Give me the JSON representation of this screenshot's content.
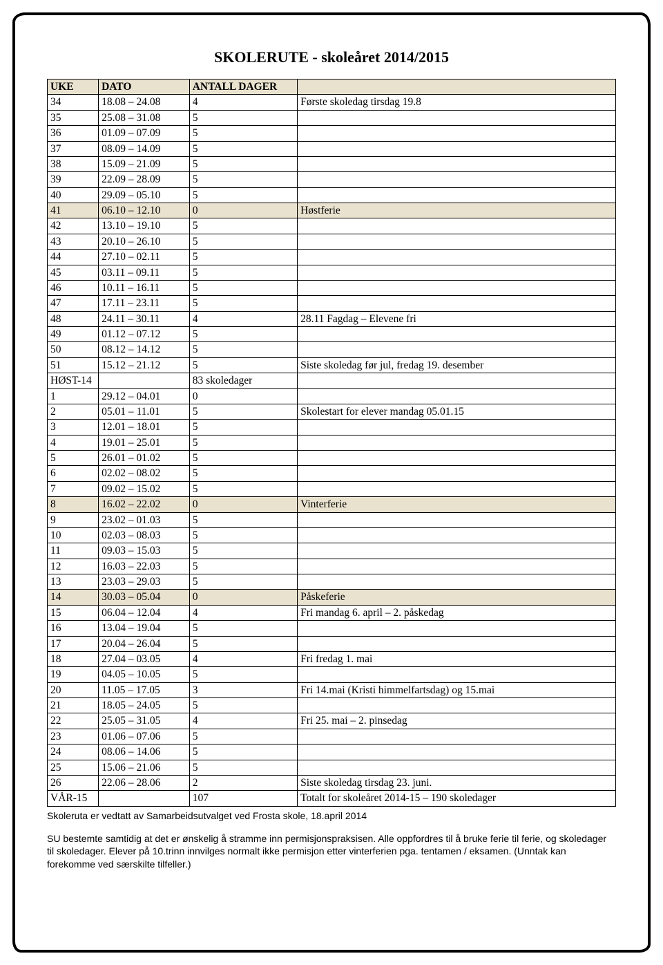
{
  "title": "SKOLERUTE - skoleåret 2014/2015",
  "columns": [
    "UKE",
    "DATO",
    "ANTALL DAGER",
    ""
  ],
  "col_widths_pct": [
    9,
    16,
    19,
    56
  ],
  "header_bg": "#e9e2cf",
  "shaded_bg": "#e9e2cf",
  "border_color": "#000000",
  "font_table": "Times New Roman",
  "font_title": "Comic Sans MS",
  "font_body": "Verdana",
  "title_fontsize": 22,
  "table_fontsize": 15.5,
  "body_fontsize": 14,
  "rows": [
    {
      "uke": "34",
      "dato": "18.08 – 24.08",
      "dager": "4",
      "note": "Første skoledag tirsdag 19.8",
      "shaded": false
    },
    {
      "uke": "35",
      "dato": "25.08 – 31.08",
      "dager": "5",
      "note": "",
      "shaded": false
    },
    {
      "uke": "36",
      "dato": "01.09 – 07.09",
      "dager": "5",
      "note": "",
      "shaded": false
    },
    {
      "uke": "37",
      "dato": "08.09 – 14.09",
      "dager": "5",
      "note": "",
      "shaded": false
    },
    {
      "uke": "38",
      "dato": "15.09 – 21.09",
      "dager": "5",
      "note": "",
      "shaded": false
    },
    {
      "uke": "39",
      "dato": "22.09 – 28.09",
      "dager": "5",
      "note": "",
      "shaded": false
    },
    {
      "uke": "40",
      "dato": "29.09 – 05.10",
      "dager": "5",
      "note": "",
      "shaded": false
    },
    {
      "uke": "41",
      "dato": "06.10 – 12.10",
      "dager": "0",
      "note": "Høstferie",
      "shaded": true
    },
    {
      "uke": "42",
      "dato": "13.10 – 19.10",
      "dager": "5",
      "note": "",
      "shaded": false
    },
    {
      "uke": "43",
      "dato": "20.10 – 26.10",
      "dager": "5",
      "note": "",
      "shaded": false
    },
    {
      "uke": "44",
      "dato": "27.10 – 02.11",
      "dager": "5",
      "note": "",
      "shaded": false
    },
    {
      "uke": "45",
      "dato": "03.11 – 09.11",
      "dager": "5",
      "note": "",
      "shaded": false
    },
    {
      "uke": "46",
      "dato": "10.11 – 16.11",
      "dager": "5",
      "note": "",
      "shaded": false
    },
    {
      "uke": "47",
      "dato": "17.11 – 23.11",
      "dager": "5",
      "note": "",
      "shaded": false
    },
    {
      "uke": "48",
      "dato": "24.11 – 30.11",
      "dager": "4",
      "note": "28.11 Fagdag – Elevene fri",
      "shaded": false
    },
    {
      "uke": "49",
      "dato": "01.12 – 07.12",
      "dager": "5",
      "note": "",
      "shaded": false
    },
    {
      "uke": "50",
      "dato": "08.12 – 14.12",
      "dager": "5",
      "note": "",
      "shaded": false
    },
    {
      "uke": "51",
      "dato": "15.12 – 21.12",
      "dager": "5",
      "note": "Siste skoledag før jul, fredag 19. desember",
      "shaded": false
    },
    {
      "uke": "HØST-14",
      "dato": "",
      "dager": "83 skoledager",
      "note": "",
      "shaded": false
    },
    {
      "uke": "1",
      "dato": "29.12 – 04.01",
      "dager": "0",
      "note": "",
      "shaded": false
    },
    {
      "uke": "2",
      "dato": "05.01 – 11.01",
      "dager": "5",
      "note": "Skolestart for elever mandag 05.01.15",
      "shaded": false
    },
    {
      "uke": "3",
      "dato": "12.01 – 18.01",
      "dager": "5",
      "note": "",
      "shaded": false
    },
    {
      "uke": "4",
      "dato": "19.01 – 25.01",
      "dager": "5",
      "note": "",
      "shaded": false
    },
    {
      "uke": "5",
      "dato": "26.01 – 01.02",
      "dager": "5",
      "note": "",
      "shaded": false
    },
    {
      "uke": "6",
      "dato": "02.02 – 08.02",
      "dager": "5",
      "note": "",
      "shaded": false
    },
    {
      "uke": "7",
      "dato": "09.02 – 15.02",
      "dager": "5",
      "note": "",
      "shaded": false
    },
    {
      "uke": "8",
      "dato": "16.02 – 22.02",
      "dager": "0",
      "note": "Vinterferie",
      "shaded": true
    },
    {
      "uke": "9",
      "dato": "23.02 – 01.03",
      "dager": "5",
      "note": "",
      "shaded": false
    },
    {
      "uke": "10",
      "dato": "02.03 – 08.03",
      "dager": "5",
      "note": "",
      "shaded": false
    },
    {
      "uke": "11",
      "dato": "09.03 – 15.03",
      "dager": "5",
      "note": "",
      "shaded": false
    },
    {
      "uke": "12",
      "dato": "16.03 – 22.03",
      "dager": "5",
      "note": "",
      "shaded": false
    },
    {
      "uke": "13",
      "dato": "23.03 – 29.03",
      "dager": "5",
      "note": "",
      "shaded": false
    },
    {
      "uke": "14",
      "dato": "30.03 – 05.04",
      "dager": "0",
      "note": "Påskeferie",
      "shaded": true
    },
    {
      "uke": "15",
      "dato": "06.04 – 12.04",
      "dager": "4",
      "note": "Fri mandag 6. april – 2. påskedag",
      "shaded": false
    },
    {
      "uke": "16",
      "dato": "13.04 – 19.04",
      "dager": "5",
      "note": "",
      "shaded": false
    },
    {
      "uke": "17",
      "dato": "20.04 – 26.04",
      "dager": "5",
      "note": "",
      "shaded": false
    },
    {
      "uke": "18",
      "dato": "27.04 – 03.05",
      "dager": "4",
      "note": "Fri fredag 1. mai",
      "shaded": false
    },
    {
      "uke": "19",
      "dato": "04.05 – 10.05",
      "dager": "5",
      "note": "",
      "shaded": false
    },
    {
      "uke": "20",
      "dato": "11.05 – 17.05",
      "dager": "3",
      "note": "Fri 14.mai (Kristi himmelfartsdag) og 15.mai",
      "shaded": false
    },
    {
      "uke": "21",
      "dato": "18.05 – 24.05",
      "dager": "5",
      "note": "",
      "shaded": false
    },
    {
      "uke": "22",
      "dato": "25.05 – 31.05",
      "dager": "4",
      "note": "Fri 25. mai – 2. pinsedag",
      "shaded": false
    },
    {
      "uke": "23",
      "dato": "01.06 – 07.06",
      "dager": "5",
      "note": "",
      "shaded": false
    },
    {
      "uke": "24",
      "dato": "08.06 – 14.06",
      "dager": "5",
      "note": "",
      "shaded": false
    },
    {
      "uke": "25",
      "dato": "15.06 – 21.06",
      "dager": "5",
      "note": "",
      "shaded": false
    },
    {
      "uke": "26",
      "dato": "22.06 – 28.06",
      "dager": "2",
      "note": "Siste skoledag tirsdag 23. juni.",
      "shaded": false
    },
    {
      "uke": "VÅR-15",
      "dato": "",
      "dager": "107",
      "note": "Totalt for skoleåret 2014-15 – 190 skoledager",
      "shaded": false
    }
  ],
  "body_paragraphs": [
    "Skoleruta er vedtatt av Samarbeidsutvalget ved Frosta skole, 18.april 2014",
    "SU bestemte samtidig at det er ønskelig å stramme inn permisjonspraksisen. Alle oppfordres til å bruke ferie til ferie, og skoledager til skoledager. Elever på 10.trinn innvilges normalt ikke permisjon etter vinterferien pga. tentamen / eksamen. (Unntak kan forekomme ved særskilte tilfeller.)"
  ]
}
